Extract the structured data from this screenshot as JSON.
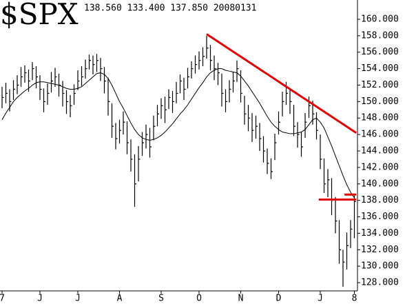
{
  "chart_data": {
    "type": "ohlc",
    "title": "$SPX",
    "subtitle": "138.560 133.400 137.850 20080131",
    "categories": [
      "7",
      null,
      null,
      null,
      null,
      null,
      null,
      null,
      null,
      null,
      "J",
      null,
      null,
      null,
      null,
      null,
      null,
      null,
      null,
      null,
      "J",
      null,
      null,
      null,
      null,
      null,
      null,
      null,
      null,
      null,
      null,
      "A",
      null,
      null,
      null,
      null,
      null,
      null,
      null,
      null,
      null,
      null,
      "S",
      null,
      null,
      null,
      null,
      null,
      null,
      null,
      null,
      null,
      "O",
      null,
      null,
      null,
      null,
      null,
      null,
      null,
      null,
      null,
      null,
      "N",
      null,
      null,
      null,
      null,
      null,
      null,
      null,
      null,
      null,
      "D",
      null,
      null,
      null,
      null,
      null,
      null,
      null,
      null,
      null,
      null,
      "J",
      null,
      null,
      null,
      null,
      null,
      null,
      null,
      null,
      "8"
    ],
    "high": [
      151.8,
      152.3,
      151.5,
      152.6,
      153.2,
      154.2,
      154.4,
      153.9,
      154.8,
      154.3,
      153.2,
      151.6,
      152.2,
      153.6,
      154.1,
      153.4,
      152.5,
      151.4,
      150.8,
      152.1,
      153.8,
      154.3,
      155.1,
      155.7,
      155.6,
      155.8,
      155.3,
      154.2,
      152.9,
      149.8,
      147.4,
      147.8,
      148.8,
      147.6,
      145.4,
      143.6,
      144.6,
      146.3,
      147.2,
      146.8,
      148.3,
      149.6,
      150.4,
      150.6,
      151.5,
      151.3,
      152.4,
      153.3,
      152.9,
      154.1,
      154.9,
      155.6,
      156.1,
      156.6,
      158,
      156.9,
      155.6,
      154.7,
      153.4,
      151.5,
      152.6,
      153.6,
      155,
      153.8,
      150.7,
      149.6,
      148.6,
      148.3,
      147.4,
      145.8,
      144.3,
      143.1,
      146.1,
      148.8,
      151.2,
      152.4,
      151.6,
      149.6,
      147.5,
      146.3,
      148.6,
      150.6,
      150.1,
      148.7,
      146,
      143.1,
      141.8,
      140.7,
      138.4,
      135.6,
      132,
      134.1,
      135.6,
      138.56
    ],
    "low": [
      149.2,
      149.8,
      148.8,
      150.2,
      150.9,
      151.8,
      152.3,
      151.2,
      152.6,
      151.6,
      150.2,
      148.7,
      149.6,
      151.1,
      151.8,
      150.6,
      149.4,
      148.5,
      148.1,
      149.6,
      151.4,
      151.9,
      152.8,
      153.9,
      153.3,
      153.6,
      152.5,
      151,
      148.3,
      145.6,
      144.2,
      144.9,
      146,
      143.6,
      141.5,
      137.2,
      140.3,
      143.4,
      144.3,
      143.2,
      145.3,
      147,
      147.9,
      147.4,
      149.1,
      148.6,
      149.8,
      151,
      150.2,
      151.6,
      152.8,
      153.4,
      153.9,
      154.3,
      155.2,
      153.8,
      152.6,
      152,
      149.4,
      148.7,
      149.9,
      151.1,
      152.4,
      149.9,
      147.2,
      146.4,
      145.1,
      145.5,
      144,
      142.6,
      141.2,
      140.6,
      142.9,
      146,
      148.2,
      149.6,
      148.5,
      145.8,
      144.4,
      143.3,
      145.6,
      148,
      147.2,
      145.4,
      141.8,
      138.9,
      138.4,
      136.2,
      134,
      130.3,
      127.5,
      129.6,
      132.2,
      133.4
    ],
    "close": [
      150.5,
      151,
      150,
      151.5,
      152,
      153,
      153.5,
      152.5,
      154,
      153,
      151.5,
      150,
      151,
      152.5,
      153,
      152,
      151,
      150,
      149.5,
      151,
      152.5,
      153,
      154,
      155,
      154.5,
      155,
      154,
      152.5,
      150,
      147,
      145.5,
      146.5,
      147.5,
      145,
      143,
      140,
      143,
      145,
      146,
      144.5,
      147,
      148.5,
      149.5,
      149,
      150.5,
      150,
      151,
      152.5,
      151.5,
      153,
      154,
      154.5,
      155,
      155.5,
      156.5,
      155,
      154,
      153.5,
      151,
      150,
      151.5,
      152.5,
      154,
      151,
      148.5,
      148,
      146.5,
      147,
      145.5,
      144,
      142.5,
      141.5,
      145,
      147.5,
      150,
      151,
      150,
      147,
      146,
      144.5,
      147.5,
      149.5,
      148.5,
      146.5,
      143,
      140,
      140.5,
      138,
      135.5,
      132,
      130.5,
      132.5,
      134.5,
      137.85
    ],
    "ma": [
      147.8,
      148.6,
      149.3,
      150,
      150.5,
      150.9,
      151.3,
      151.6,
      152,
      152.3,
      152.4,
      152.4,
      152.3,
      152.2,
      152.1,
      152,
      151.8,
      151.6,
      151.5,
      151.5,
      151.6,
      151.8,
      152.2,
      152.6,
      153,
      153.4,
      153.5,
      153.3,
      152.8,
      152,
      151,
      150,
      149.2,
      148.3,
      147.4,
      146.6,
      146,
      145.6,
      145.4,
      145.3,
      145.4,
      145.6,
      145.9,
      146.3,
      146.8,
      147.3,
      147.9,
      148.5,
      149,
      149.6,
      150.3,
      151,
      151.7,
      152.3,
      153,
      153.5,
      153.8,
      154,
      154,
      153.8,
      153.7,
      153.6,
      153.5,
      153.1,
      152.5,
      151.9,
      151.2,
      150.5,
      149.8,
      149,
      148.2,
      147.5,
      147,
      146.6,
      146.3,
      146.2,
      146.1,
      146.1,
      146.2,
      146.3,
      146.6,
      147.2,
      147.8,
      148,
      147.5,
      146.8,
      145.7,
      144.6,
      143.4,
      142.2,
      141,
      139.9,
      139,
      138.3
    ],
    "color": "#000000",
    "trendlines": [
      {
        "x": [
          54,
          93.5
        ],
        "y": [
          158.2,
          146.2
        ]
      },
      {
        "x": [
          83.6,
          93.5
        ],
        "y": [
          138.1,
          138.1
        ]
      },
      {
        "x": [
          90.4,
          93.5
        ],
        "y": [
          138.7,
          138.7
        ]
      }
    ],
    "trendline_color": "#e00000",
    "ylim": [
      127,
      162.3
    ],
    "yticks": [
      {
        "value": 128,
        "label": "128.000"
      },
      {
        "value": 130,
        "label": "130.000"
      },
      {
        "value": 132,
        "label": "132.000"
      },
      {
        "value": 134,
        "label": "134.000"
      },
      {
        "value": 136,
        "label": "136.000"
      },
      {
        "value": 138,
        "label": "138.000"
      },
      {
        "value": 140,
        "label": "140.000"
      },
      {
        "value": 142,
        "label": "142.000"
      },
      {
        "value": 144,
        "label": "144.000"
      },
      {
        "value": 146,
        "label": "146.000"
      },
      {
        "value": 148,
        "label": "148.000"
      },
      {
        "value": 150,
        "label": "150.000"
      },
      {
        "value": 152,
        "label": "152.000"
      },
      {
        "value": 154,
        "label": "154.000"
      },
      {
        "value": 156,
        "label": "156.000"
      },
      {
        "value": 158,
        "label": "158.000"
      },
      {
        "value": 160,
        "label": "160.000"
      }
    ]
  }
}
